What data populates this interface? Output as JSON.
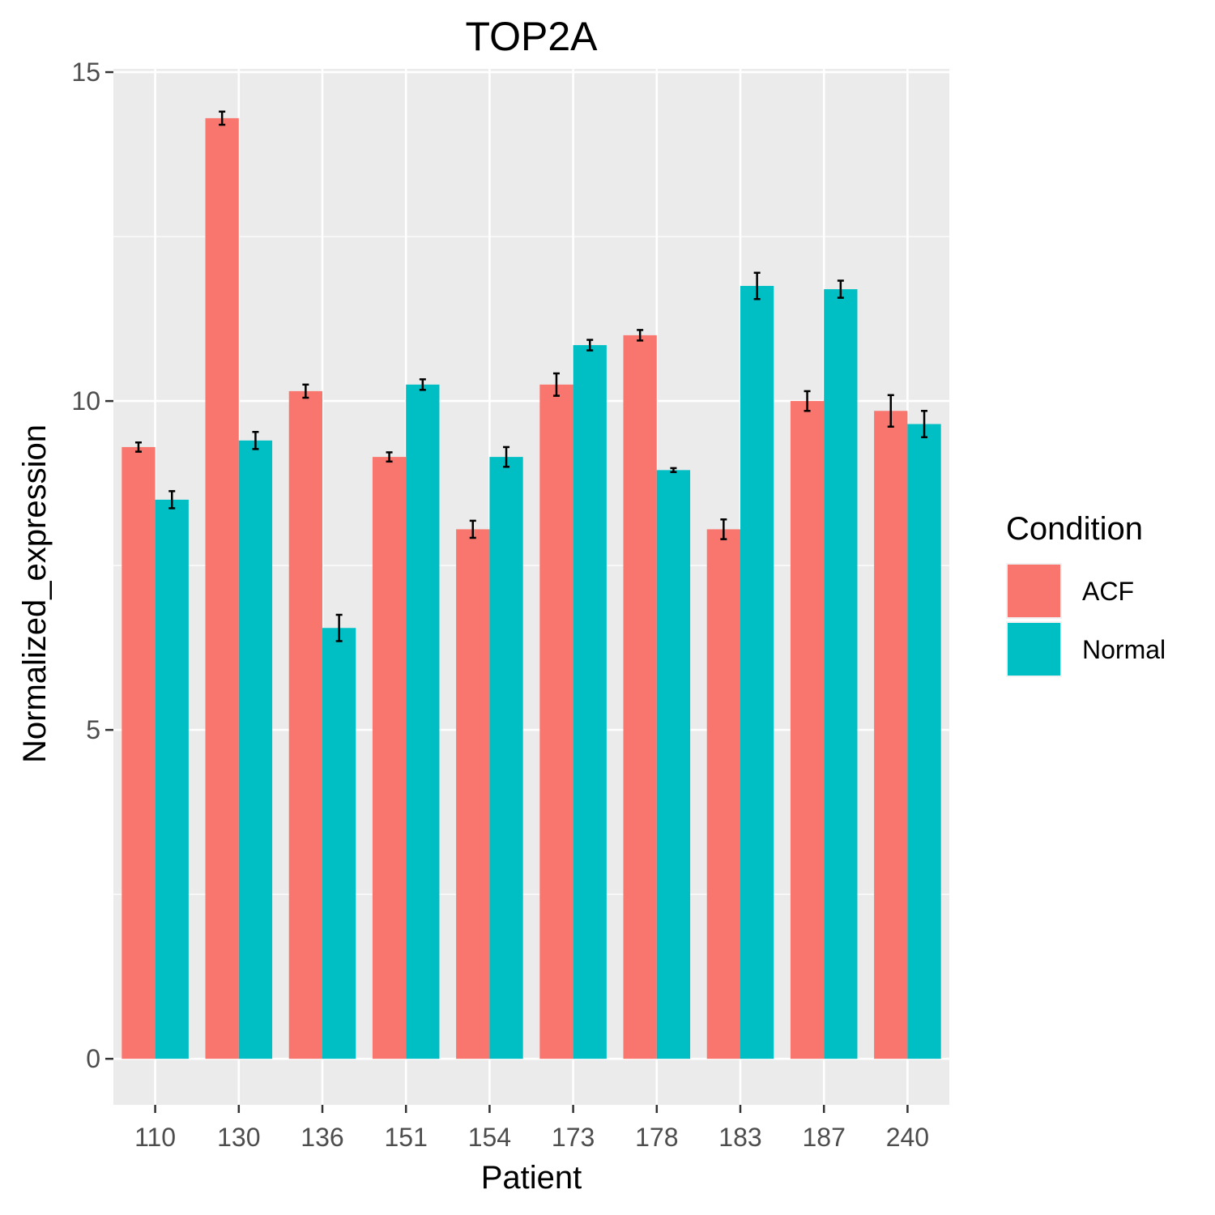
{
  "chart_data": {
    "type": "bar",
    "title": "TOP2A",
    "xlabel": "Patient",
    "ylabel": "Normalized_expression",
    "categories": [
      "110",
      "130",
      "136",
      "151",
      "154",
      "173",
      "178",
      "183",
      "187",
      "240"
    ],
    "ylim": [
      -0.7,
      15.05
    ],
    "yticks": [
      0,
      5,
      10,
      15
    ],
    "grid": true,
    "legend": {
      "title": "Condition",
      "position": "right"
    },
    "series": [
      {
        "name": "ACF",
        "color": "#F8766D",
        "values": [
          9.3,
          14.3,
          10.15,
          9.15,
          8.05,
          10.25,
          11.0,
          8.05,
          10.0,
          9.85
        ],
        "errors": [
          0.07,
          0.1,
          0.1,
          0.07,
          0.13,
          0.17,
          0.08,
          0.15,
          0.15,
          0.24
        ]
      },
      {
        "name": "Normal",
        "color": "#00BFC4",
        "values": [
          8.5,
          9.4,
          6.55,
          10.25,
          9.15,
          10.85,
          8.95,
          11.75,
          11.7,
          9.65
        ],
        "errors": [
          0.13,
          0.13,
          0.2,
          0.08,
          0.15,
          0.08,
          0.03,
          0.2,
          0.13,
          0.2
        ]
      }
    ]
  }
}
